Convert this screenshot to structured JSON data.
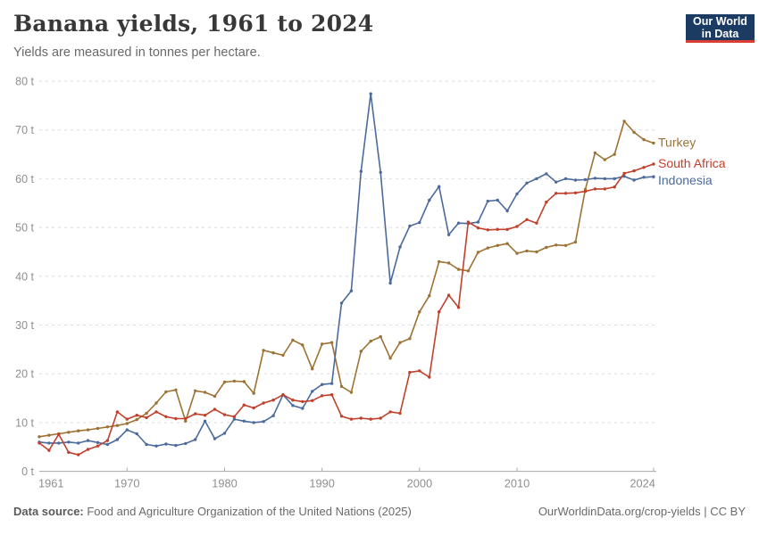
{
  "header": {
    "title": "Banana yields, 1961 to 2024",
    "subtitle": "Yields are measured in tonnes per hectare."
  },
  "logo": {
    "line1": "Our World",
    "line2": "in Data"
  },
  "footer": {
    "source_label": "Data source:",
    "source_text": " Food and Agriculture Organization of the United Nations (2025)",
    "credit_link": "OurWorldinData.org/crop-yields",
    "credit_suffix": " | CC BY"
  },
  "chart_data": {
    "type": "line",
    "title": "Banana yields, 1961 to 2024",
    "unit": "tonnes per hectare",
    "grid": "dashed-horizontal",
    "legend_position": "right-of-line-ends",
    "ylim": [
      0,
      80
    ],
    "xlim": [
      1961,
      2024
    ],
    "y_ticks": [
      0,
      10,
      20,
      30,
      40,
      50,
      60,
      70,
      80
    ],
    "y_tick_suffix": " t",
    "x_ticks": [
      1961,
      1970,
      1980,
      1990,
      2000,
      2010,
      2024
    ],
    "x": [
      1961,
      1962,
      1963,
      1964,
      1965,
      1966,
      1967,
      1968,
      1969,
      1970,
      1971,
      1972,
      1973,
      1974,
      1975,
      1976,
      1977,
      1978,
      1979,
      1980,
      1981,
      1982,
      1983,
      1984,
      1985,
      1986,
      1987,
      1988,
      1989,
      1990,
      1991,
      1992,
      1993,
      1994,
      1995,
      1996,
      1997,
      1998,
      1999,
      2000,
      2001,
      2002,
      2003,
      2004,
      2005,
      2006,
      2007,
      2008,
      2009,
      2010,
      2011,
      2012,
      2013,
      2014,
      2015,
      2016,
      2017,
      2018,
      2019,
      2020,
      2021,
      2022,
      2023,
      2024
    ],
    "series": [
      {
        "name": "Turkey",
        "color": "#9d7234",
        "values": [
          7.1,
          7.4,
          7.7,
          8.0,
          8.3,
          8.5,
          8.8,
          9.1,
          9.4,
          9.8,
          10.6,
          11.9,
          14.0,
          16.3,
          16.7,
          10.3,
          16.5,
          16.2,
          15.4,
          18.3,
          18.5,
          18.4,
          16.0,
          24.8,
          24.3,
          23.8,
          26.9,
          25.9,
          21.0,
          26.1,
          26.4,
          17.4,
          16.2,
          24.6,
          26.7,
          27.6,
          23.2,
          26.4,
          27.2,
          32.7,
          36.0,
          43.0,
          42.7,
          41.4,
          41.1,
          44.9,
          45.8,
          46.3,
          46.7,
          44.7,
          45.2,
          45.0,
          45.9,
          46.4,
          46.3,
          47.0,
          57.8,
          65.3,
          63.9,
          65.0,
          71.8,
          69.5,
          68.0,
          67.3
        ]
      },
      {
        "name": "South Africa",
        "color": "#c0402c",
        "values": [
          5.8,
          4.3,
          7.6,
          3.9,
          3.4,
          4.5,
          5.2,
          6.3,
          12.2,
          10.7,
          11.5,
          11.0,
          12.2,
          11.2,
          10.8,
          10.8,
          11.8,
          11.5,
          12.7,
          11.6,
          11.2,
          13.6,
          13.0,
          14.0,
          14.6,
          15.7,
          14.6,
          14.3,
          14.5,
          15.5,
          15.7,
          11.3,
          10.7,
          10.9,
          10.7,
          10.9,
          12.2,
          11.9,
          20.3,
          20.6,
          19.3,
          32.7,
          36.1,
          33.6,
          51.1,
          49.9,
          49.5,
          49.6,
          49.6,
          50.2,
          51.6,
          50.9,
          55.2,
          57.0,
          57.0,
          57.1,
          57.4,
          57.9,
          57.9,
          58.3,
          61.1,
          61.6,
          62.3,
          63.0
        ]
      },
      {
        "name": "Indonesia",
        "color": "#4c6a9c",
        "values": [
          6.0,
          5.8,
          5.8,
          6.0,
          5.8,
          6.3,
          5.9,
          5.5,
          6.5,
          8.5,
          7.7,
          5.5,
          5.2,
          5.6,
          5.3,
          5.7,
          6.5,
          10.3,
          6.7,
          7.8,
          10.7,
          10.3,
          10.0,
          10.2,
          11.4,
          15.7,
          13.5,
          12.9,
          16.4,
          17.8,
          18.0,
          34.5,
          37.0,
          61.5,
          77.4,
          61.3,
          38.6,
          46.0,
          50.3,
          51.0,
          55.6,
          58.4,
          48.5,
          50.9,
          50.8,
          51.1,
          55.4,
          55.6,
          53.4,
          56.9,
          59.1,
          60.0,
          61.0,
          59.3,
          60.0,
          59.7,
          59.8,
          60.1,
          60.0,
          60.0,
          60.5,
          59.7,
          60.3,
          60.4
        ]
      }
    ]
  }
}
